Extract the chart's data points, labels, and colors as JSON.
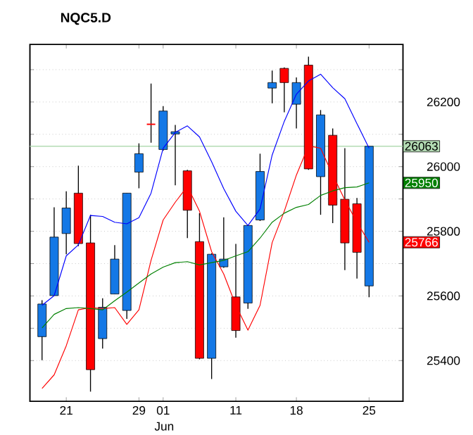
{
  "chart_data": {
    "type": "candlestick",
    "title": "NQC5.D",
    "categories": [
      null,
      null,
      "21",
      null,
      null,
      null,
      null,
      null,
      "29",
      null,
      "01",
      null,
      null,
      null,
      null,
      null,
      "11",
      null,
      null,
      null,
      null,
      "18",
      null,
      null,
      null,
      null,
      null,
      "25"
    ],
    "ohlc": [
      [
        25474,
        25587,
        25401,
        25575
      ],
      [
        25601,
        25874,
        25601,
        25782
      ],
      [
        25793,
        25924,
        25729,
        25872
      ],
      [
        25918,
        26003,
        25754,
        25762
      ],
      [
        25764,
        25851,
        25304,
        25372
      ],
      [
        25468,
        25593,
        25437,
        25565
      ],
      [
        25606,
        25757,
        25606,
        25714
      ],
      [
        25555,
        25918,
        25529,
        25918
      ],
      [
        25983,
        26072,
        25933,
        26040
      ],
      [
        26131,
        26257,
        26074,
        26131
      ],
      [
        26053,
        26187,
        26049,
        26172
      ],
      [
        26101,
        26129,
        25942,
        26108
      ],
      [
        25987,
        25990,
        25779,
        25865
      ],
      [
        25768,
        25856,
        25404,
        25407
      ],
      [
        25407,
        25732,
        25343,
        25729
      ],
      [
        25690,
        25843,
        25687,
        25714
      ],
      [
        25597,
        25761,
        25471,
        25493
      ],
      [
        25578,
        25821,
        25560,
        25818
      ],
      [
        25835,
        26040,
        25832,
        25985
      ],
      [
        26243,
        26297,
        26196,
        26260
      ],
      [
        26304,
        26307,
        26168,
        26260
      ],
      [
        26193,
        26276,
        26118,
        26260
      ],
      [
        26314,
        26340,
        25990,
        25993
      ],
      [
        25969,
        26175,
        25851,
        26160
      ],
      [
        26097,
        26118,
        25825,
        25881
      ],
      [
        25899,
        26057,
        25680,
        25764
      ],
      [
        25885,
        25903,
        25654,
        25735
      ],
      [
        25631,
        26063,
        25596,
        26063
      ]
    ],
    "series": [
      {
        "type": "line",
        "color": "#0000ff",
        "values": [
          25571,
          25601,
          25724,
          25758,
          25849,
          25846,
          25828,
          25823,
          25842,
          25918,
          26057,
          26106,
          26126,
          26092,
          26015,
          25932,
          25862,
          25818,
          25869,
          26036,
          26140,
          26224,
          26265,
          26286,
          26244,
          26210,
          26133,
          26057
        ]
      },
      {
        "type": "line",
        "color": "#ff0000",
        "values": [
          25314,
          25356,
          25446,
          25557,
          25564,
          25561,
          25564,
          25512,
          25557,
          25710,
          25835,
          25890,
          25939,
          25862,
          25737,
          25668,
          25571,
          25494,
          25571,
          25765,
          25862,
          25974,
          26064,
          26057,
          25974,
          25897,
          25828,
          25766
        ]
      },
      {
        "type": "line",
        "color": "#008000",
        "values": [
          25501,
          25543,
          25561,
          25564,
          25561,
          25557,
          25585,
          25612,
          25640,
          25668,
          25689,
          25703,
          25706,
          25696,
          25703,
          25710,
          25724,
          25737,
          25779,
          25828,
          25856,
          25874,
          25883,
          25911,
          25925,
          25935,
          25937,
          25950
        ]
      }
    ],
    "ref_lines": [
      {
        "axis": "y",
        "value": 26063,
        "label": "26063",
        "color": "#b4dcb4"
      }
    ],
    "annotations": [
      "Jun",
      "25950",
      "25766"
    ],
    "ylim": [
      25274,
      26378
    ],
    "yticks": [
      25400,
      {
        "value": 25500,
        "label": null
      },
      25600,
      {
        "value": 25700,
        "label": null
      },
      25800,
      {
        "value": 25900,
        "label": null
      },
      26000,
      {
        "value": 26100,
        "label": null
      },
      26200,
      {
        "value": 26300,
        "label": null
      }
    ],
    "grid": "y"
  }
}
